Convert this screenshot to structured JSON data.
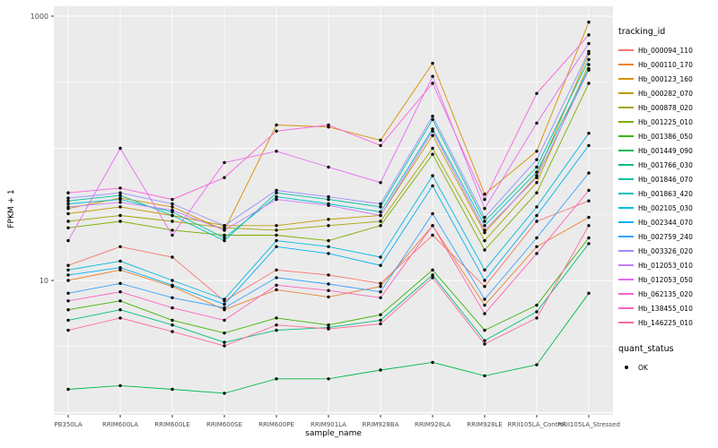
{
  "figure": {
    "background": "#FFFFFF",
    "panel_bg": "#EBEBEB",
    "grid_color": "#FFFFFF",
    "point_color": "#000000",
    "text_color": "#4D4D4D"
  },
  "chart_data": {
    "type": "line",
    "title": "",
    "xlabel": "sample_name",
    "ylabel": "FPKM + 1",
    "y_scale": "log10",
    "y_ticks": [
      1000,
      10
    ],
    "ylim": [
      1,
      1100
    ],
    "grid": true,
    "legend_position": "right",
    "legend_title": "tracking_id",
    "legend2_title": "quant_status",
    "legend2_items": [
      "OK"
    ],
    "categories": [
      "PB350LA",
      "RRIM600LA",
      "RRIM600LE",
      "RRIM600SE",
      "RRIM600PE",
      "RRIM901LA",
      "RRIM928BA",
      "RRIM928LA",
      "RRIM928LE",
      "RRII105LA_Control",
      "RRII105LA_Stressed"
    ],
    "series": [
      {
        "name": "Hb_000094_110",
        "color": "#F8766D",
        "values": [
          13,
          18,
          15,
          7,
          12,
          11,
          9.5,
          22,
          9,
          28,
          40
        ]
      },
      {
        "name": "Hb_000110_170",
        "color": "#EA8331",
        "values": [
          10,
          12,
          9,
          6,
          8.5,
          7.5,
          9,
          26,
          6.5,
          18,
          30
        ]
      },
      {
        "name": "Hb_000123_160",
        "color": "#D89000",
        "values": [
          35,
          42,
          36,
          24,
          150,
          145,
          115,
          440,
          45,
          95,
          900
        ]
      },
      {
        "name": "Hb_000282_070",
        "color": "#C09B00",
        "values": [
          32,
          36,
          31,
          26,
          26,
          29,
          31,
          125,
          23,
          62,
          520
        ]
      },
      {
        "name": "Hb_000878_020",
        "color": "#A3A500",
        "values": [
          28,
          31,
          28,
          25,
          24,
          26,
          28,
          100,
          20,
          55,
          430
        ]
      },
      {
        "name": "Hb_001225_010",
        "color": "#7CAE00",
        "values": [
          25,
          28,
          24,
          22,
          22,
          20,
          26,
          90,
          17,
          46,
          310
        ]
      },
      {
        "name": "Hb_001386_050",
        "color": "#39B600",
        "values": [
          6,
          7,
          5,
          4,
          5.2,
          4.6,
          5.5,
          12,
          4.2,
          6.5,
          21
        ]
      },
      {
        "name": "Hb_001449_090",
        "color": "#00BB4E",
        "values": [
          1.5,
          1.6,
          1.5,
          1.4,
          1.8,
          1.8,
          2.1,
          2.4,
          1.9,
          2.3,
          8
        ]
      },
      {
        "name": "Hb_001766_030",
        "color": "#00BF7D",
        "values": [
          5,
          6,
          4.6,
          3.4,
          4.2,
          4.4,
          5,
          11,
          3.5,
          5.8,
          19
        ]
      },
      {
        "name": "Hb_001846_070",
        "color": "#00C1A3",
        "values": [
          40,
          44,
          31,
          20,
          46,
          41,
          36,
          165,
          28,
          72,
          470
        ]
      },
      {
        "name": "Hb_001863_420",
        "color": "#00BFC4",
        "values": [
          38,
          41,
          33,
          21,
          43,
          38,
          33,
          140,
          26,
          66,
          400
        ]
      },
      {
        "name": "Hb_002105_030",
        "color": "#00BAE0",
        "values": [
          12,
          14,
          10,
          7.2,
          20,
          18,
          15,
          62,
          12,
          36,
          130
        ]
      },
      {
        "name": "Hb_002344_070",
        "color": "#00B0F6",
        "values": [
          11,
          12.5,
          9.2,
          6.6,
          18,
          16,
          13,
          52,
          10,
          31,
          105
        ]
      },
      {
        "name": "Hb_002759_240",
        "color": "#35A2FF",
        "values": [
          8,
          9.5,
          7.4,
          6.2,
          10.5,
          9.4,
          8.2,
          32,
          7.2,
          21,
          65
        ]
      },
      {
        "name": "Hb_003326_020",
        "color": "#9590FF",
        "values": [
          42,
          46,
          38,
          26,
          48,
          43,
          38,
          175,
          30,
          82,
          540
        ]
      },
      {
        "name": "Hb_012053_010",
        "color": "#C77CFF",
        "values": [
          36,
          39,
          34,
          24,
          41,
          37,
          31,
          135,
          24,
          60,
          390
        ]
      },
      {
        "name": "Hb_012053_050",
        "color": "#E76BF3",
        "values": [
          20,
          100,
          22,
          78,
          95,
          72,
          55,
          350,
          35,
          155,
          620
        ]
      },
      {
        "name": "Hb_062135_020",
        "color": "#FA62DB",
        "values": [
          46,
          50,
          41,
          60,
          135,
          150,
          105,
          310,
          41,
          260,
          720
        ]
      },
      {
        "name": "Hb_138455_010",
        "color": "#FF62BC",
        "values": [
          7,
          8.2,
          6.2,
          5,
          9.2,
          8.4,
          7.4,
          26,
          5.6,
          16,
          48
        ]
      },
      {
        "name": "Hb_146225_010",
        "color": "#FF6A98",
        "values": [
          4.2,
          5.2,
          4.1,
          3.2,
          4.6,
          4.3,
          4.7,
          10.5,
          3.3,
          5.2,
          26
        ]
      }
    ]
  }
}
